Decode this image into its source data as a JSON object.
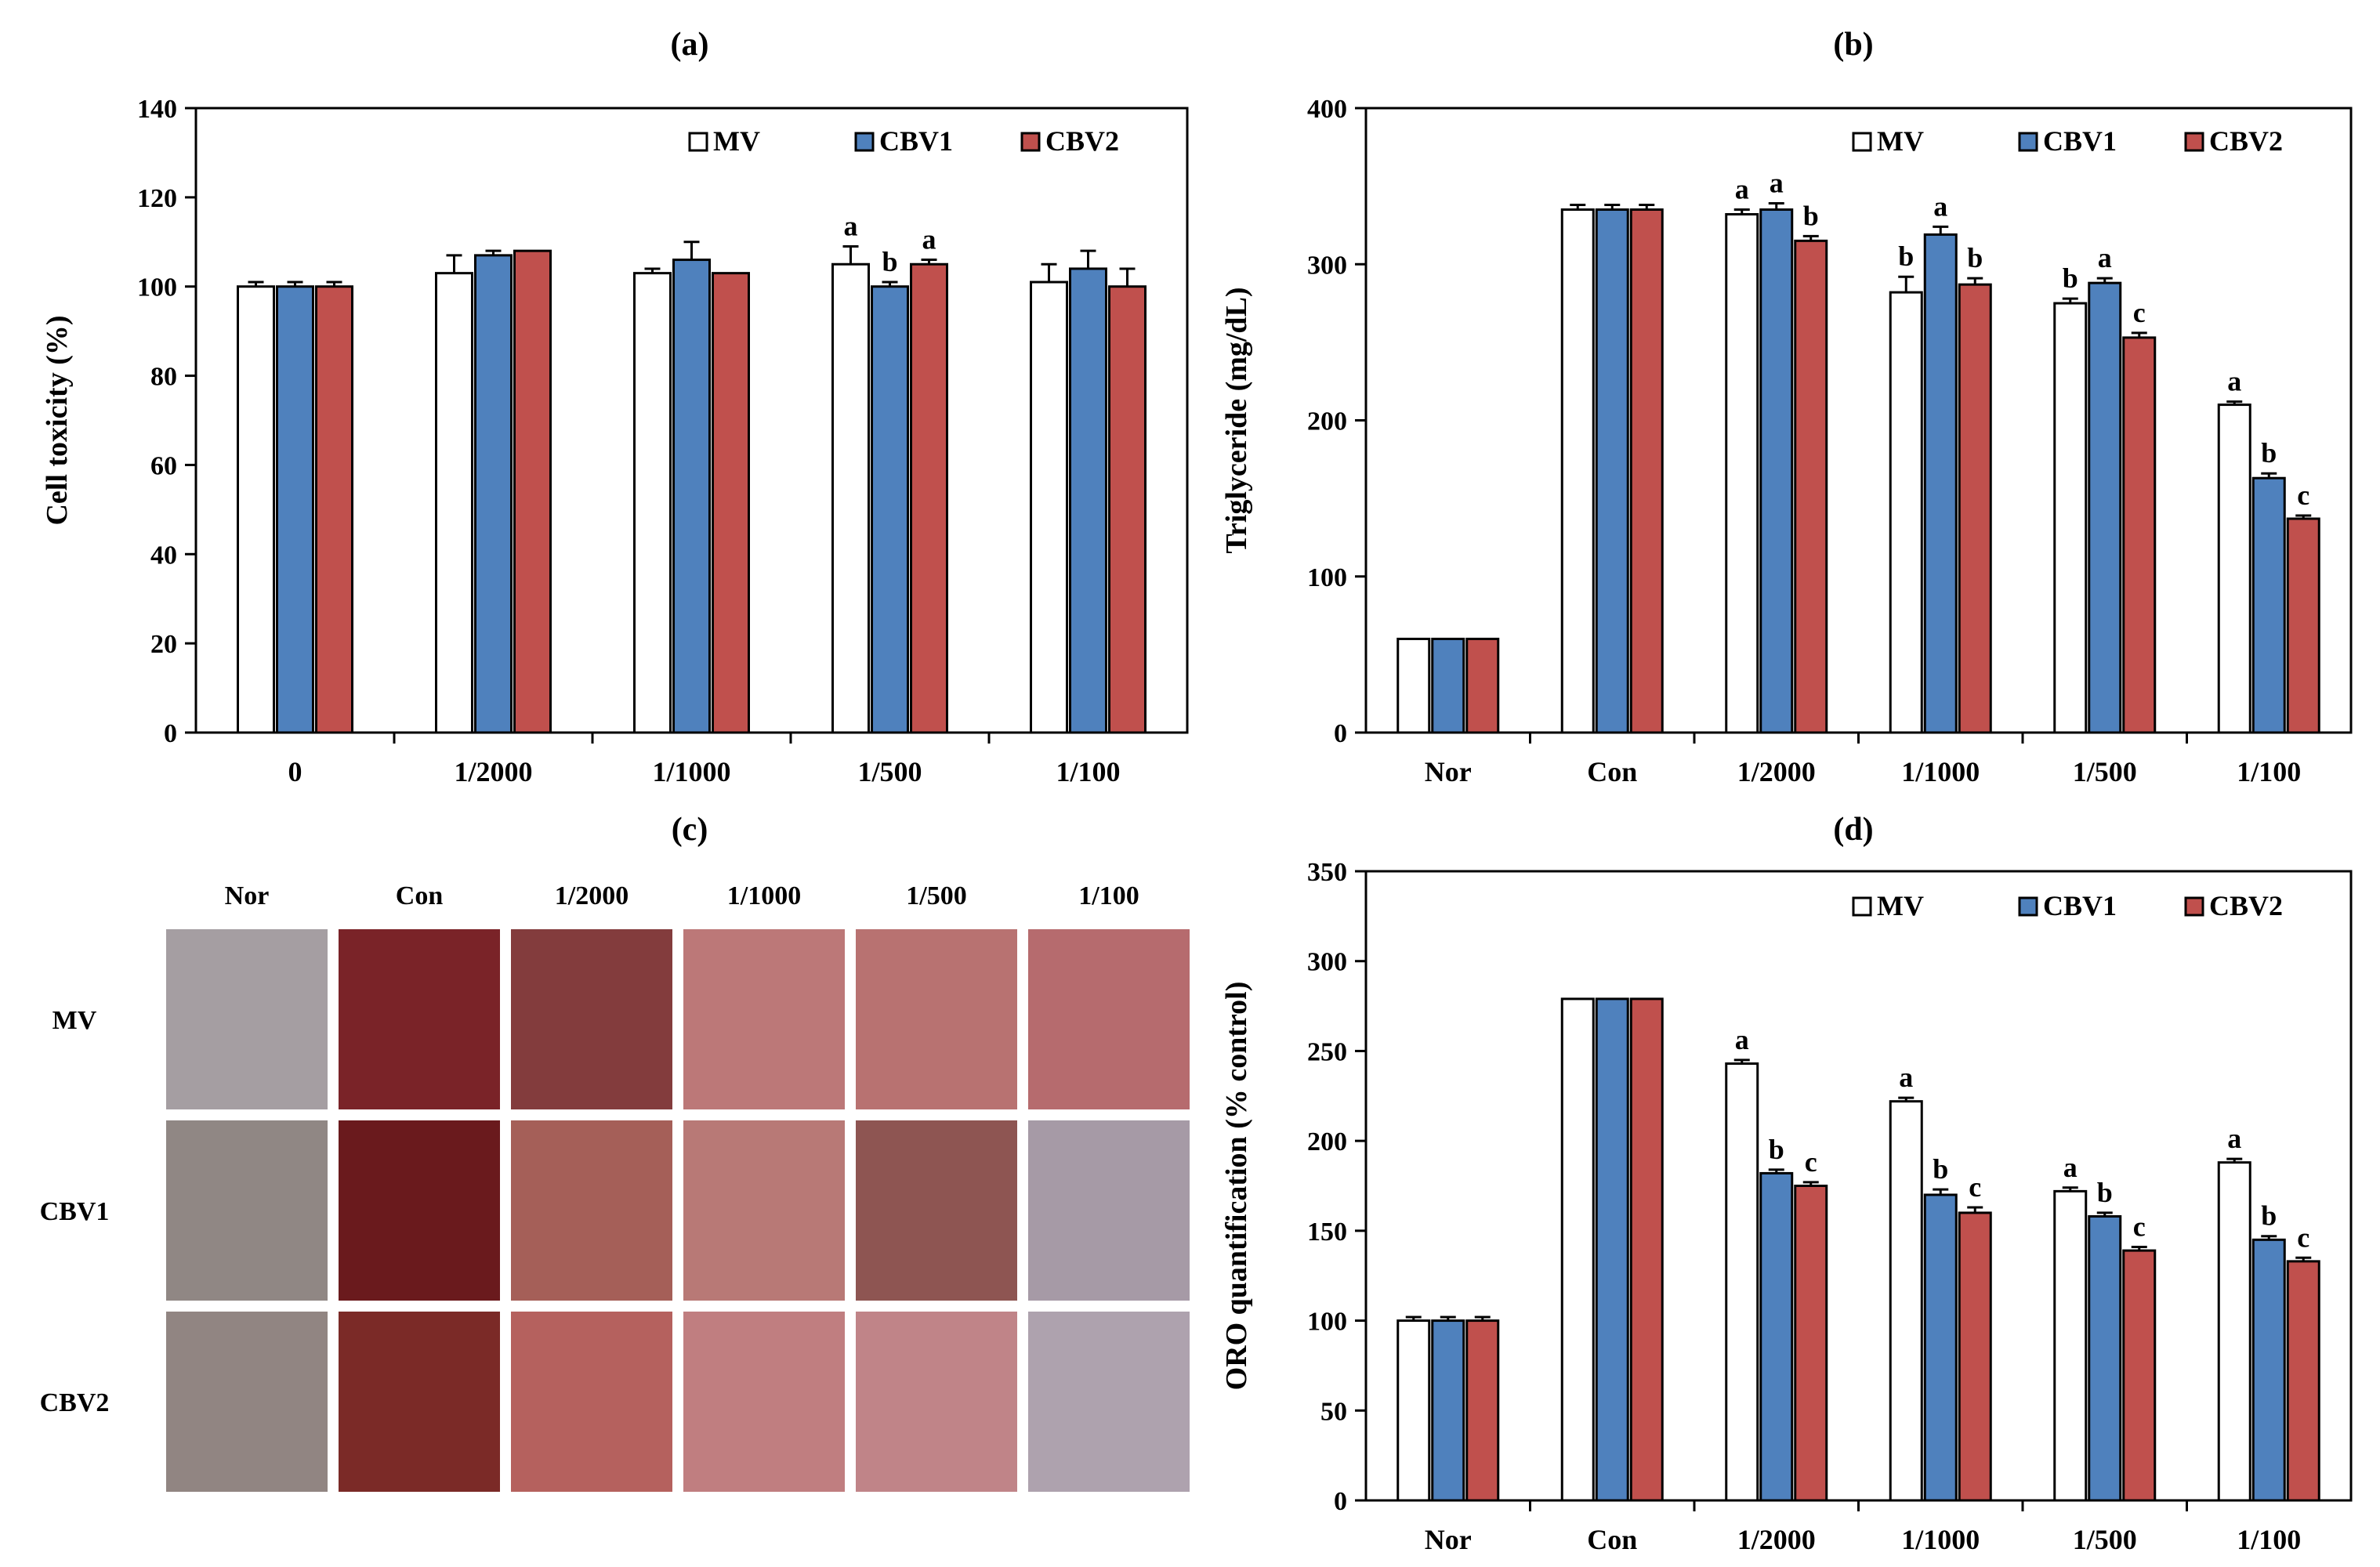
{
  "colors": {
    "MV": "#ffffff",
    "CBV1": "#4f81bd",
    "CBV2": "#c0504d"
  },
  "chart_data": [
    {
      "panel": "(a)",
      "type": "bar",
      "ylabel": "Cell toxicity (%)",
      "ylim": [
        0,
        140
      ],
      "yticks": [
        0,
        20,
        40,
        60,
        80,
        100,
        120,
        140
      ],
      "categories": [
        "0",
        "1/2000",
        "1/1000",
        "1/500",
        "1/100"
      ],
      "legend": "top-right",
      "series": [
        {
          "name": "MV",
          "values": [
            100,
            103,
            103,
            105,
            101
          ],
          "errors": [
            1,
            4,
            1,
            4,
            4
          ],
          "letters": [
            "",
            "",
            "",
            "a",
            ""
          ]
        },
        {
          "name": "CBV1",
          "values": [
            100,
            107,
            106,
            100,
            104
          ],
          "errors": [
            1,
            1,
            4,
            1,
            4
          ],
          "letters": [
            "",
            "",
            "",
            "b",
            ""
          ]
        },
        {
          "name": "CBV2",
          "values": [
            100,
            108,
            103,
            105,
            100
          ],
          "errors": [
            1,
            0,
            0,
            1,
            4
          ],
          "letters": [
            "",
            "",
            "",
            "a",
            ""
          ]
        }
      ]
    },
    {
      "panel": "(b)",
      "type": "bar",
      "ylabel": "Triglyceride (mg/dL)",
      "ylim": [
        0,
        400
      ],
      "yticks": [
        0,
        100,
        200,
        300,
        400
      ],
      "categories": [
        "Nor",
        "Con",
        "1/2000",
        "1/1000",
        "1/500",
        "1/100"
      ],
      "legend": "top-right",
      "series": [
        {
          "name": "MV",
          "values": [
            60,
            335,
            332,
            282,
            275,
            210
          ],
          "errors": [
            0,
            3,
            3,
            10,
            3,
            2
          ],
          "letters": [
            "",
            "",
            "a",
            "b",
            "b",
            "a"
          ]
        },
        {
          "name": "CBV1",
          "values": [
            60,
            335,
            335,
            319,
            288,
            163
          ],
          "errors": [
            0,
            3,
            4,
            5,
            3,
            3
          ],
          "letters": [
            "",
            "",
            "a",
            "a",
            "a",
            "b"
          ]
        },
        {
          "name": "CBV2",
          "values": [
            60,
            335,
            315,
            287,
            253,
            137
          ],
          "errors": [
            0,
            3,
            3,
            4,
            3,
            2
          ],
          "letters": [
            "",
            "",
            "b",
            "b",
            "c",
            "c"
          ]
        }
      ]
    },
    {
      "panel": "(d)",
      "type": "bar",
      "ylabel": "ORO quantification (% control)",
      "ylim": [
        0,
        350
      ],
      "yticks": [
        0,
        50,
        100,
        150,
        200,
        250,
        300,
        350
      ],
      "categories": [
        "Nor",
        "Con",
        "1/2000",
        "1/1000",
        "1/500",
        "1/100"
      ],
      "legend": "top-right",
      "series": [
        {
          "name": "MV",
          "values": [
            100,
            279,
            243,
            222,
            172,
            188
          ],
          "errors": [
            2,
            0,
            2,
            2,
            2,
            2
          ],
          "letters": [
            "",
            "",
            "a",
            "a",
            "a",
            "a"
          ]
        },
        {
          "name": "CBV1",
          "values": [
            100,
            279,
            182,
            170,
            158,
            145
          ],
          "errors": [
            2,
            0,
            2,
            3,
            2,
            2
          ],
          "letters": [
            "",
            "",
            "b",
            "b",
            "b",
            "b"
          ]
        },
        {
          "name": "CBV2",
          "values": [
            100,
            279,
            175,
            160,
            139,
            133
          ],
          "errors": [
            2,
            0,
            2,
            3,
            2,
            2
          ],
          "letters": [
            "",
            "",
            "c",
            "c",
            "c",
            "c"
          ]
        }
      ]
    }
  ],
  "stain_panel": {
    "title": "(c)",
    "columns": [
      "Nor",
      "Con",
      "1/2000",
      "1/1000",
      "1/500",
      "1/100"
    ],
    "rows": [
      "MV",
      "CBV1",
      "CBV2"
    ],
    "tiles": [
      [
        "#a59ea2",
        "#7a2328",
        "#833c3d",
        "#bc7878",
        "#b87271",
        "#b66b6e"
      ],
      [
        "#908784",
        "#6a1a1d",
        "#a55f58",
        "#b87976",
        "#8e5552",
        "#a69aa6"
      ],
      [
        "#918582",
        "#7b2a27",
        "#b5615e",
        "#c07e80",
        "#c08488",
        "#aea2ae"
      ]
    ]
  }
}
